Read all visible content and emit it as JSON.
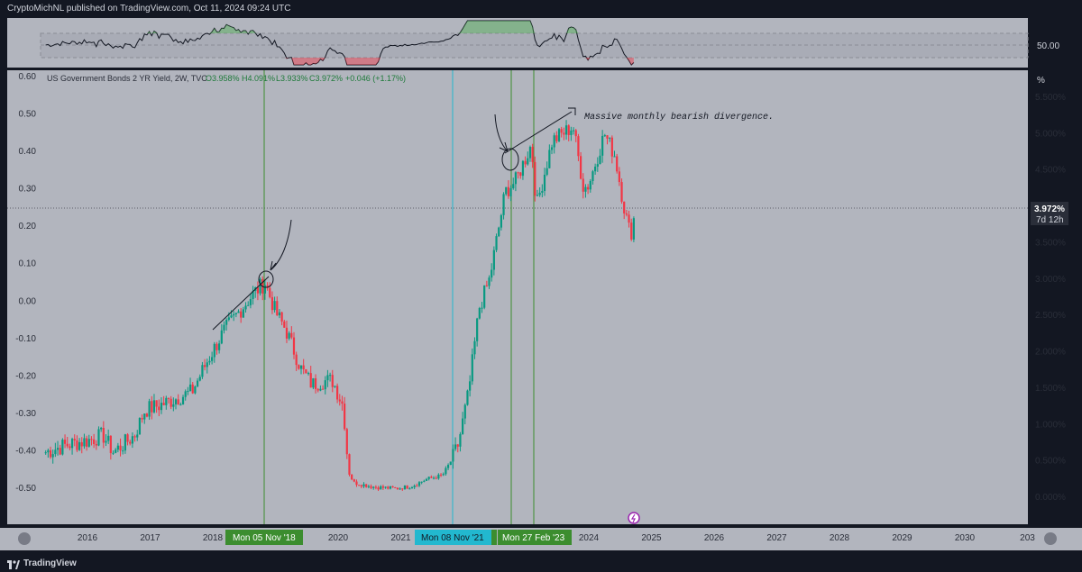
{
  "header": {
    "published": "CryptoMichNL published on TradingView.com, Oct 11, 2024 09:24 UTC"
  },
  "legend": {
    "symbol": "US Government Bonds 2 YR Yield, 2W, TVC",
    "open": "O3.958%",
    "high": "H4.091%",
    "low": "L3.933%",
    "close": "C3.972%",
    "change": "+0.046 (+1.17%)"
  },
  "indicator": {
    "level_label": "50.00"
  },
  "annotation": {
    "text": "Massive monthly bearish divergence."
  },
  "price_tag": {
    "value": "3.972%",
    "countdown": "7d 12h"
  },
  "unit_badge": "%",
  "markers": [
    {
      "label": "Mon 05 Nov '18"
    },
    {
      "label": "Mon 08 Nov '21"
    },
    {
      "label": "Mon 27 Feb '23"
    }
  ],
  "footer": {
    "brand": "TradingView"
  },
  "colors": {
    "background": "#131722",
    "plot_bg": "#b2b5be",
    "up": "#089981",
    "down": "#f23645",
    "green_marker": "#3c8d2f",
    "cyan_marker": "#22b8cf"
  },
  "chart_data": {
    "type": "candlestick",
    "x_ticks": [
      "2016",
      "2017",
      "2018",
      "2019",
      "2020",
      "2021",
      "2022",
      "2023",
      "2024",
      "2025",
      "2026",
      "2027",
      "2028",
      "2029",
      "2030",
      "203"
    ],
    "left_axis_ticks": [
      "0.60",
      "0.50",
      "0.40",
      "0.30",
      "0.20",
      "0.10",
      "0.00",
      "-0.10",
      "-0.20",
      "-0.30",
      "-0.40",
      "-0.50"
    ],
    "right_axis_ticks": [
      "5.500%",
      "5.000%",
      "4.500%",
      "4.000%",
      "3.500%",
      "3.000%",
      "2.500%",
      "2.000%",
      "1.500%",
      "1.000%",
      "0.500%",
      "0.000%"
    ],
    "right_ylim": [
      0.0,
      5.5
    ],
    "close_anchors": [
      [
        "2015-05",
        0.62
      ],
      [
        "2015-09",
        0.72
      ],
      [
        "2016-01",
        0.78
      ],
      [
        "2016-04",
        0.85
      ],
      [
        "2016-06",
        0.62
      ],
      [
        "2016-10",
        0.85
      ],
      [
        "2016-12",
        1.2
      ],
      [
        "2017-03",
        1.27
      ],
      [
        "2017-06",
        1.36
      ],
      [
        "2017-09",
        1.45
      ],
      [
        "2017-12",
        1.88
      ],
      [
        "2018-03",
        2.27
      ],
      [
        "2018-06",
        2.55
      ],
      [
        "2018-09",
        2.82
      ],
      [
        "2018-11",
        2.95
      ],
      [
        "2019-01",
        2.55
      ],
      [
        "2019-03",
        2.3
      ],
      [
        "2019-06",
        1.75
      ],
      [
        "2019-08",
        1.55
      ],
      [
        "2019-10",
        1.6
      ],
      [
        "2019-12",
        1.6
      ],
      [
        "2020-02",
        1.25
      ],
      [
        "2020-03",
        0.35
      ],
      [
        "2020-04",
        0.2
      ],
      [
        "2020-08",
        0.14
      ],
      [
        "2020-12",
        0.12
      ],
      [
        "2021-03",
        0.15
      ],
      [
        "2021-06",
        0.25
      ],
      [
        "2021-09",
        0.3
      ],
      [
        "2021-11",
        0.55
      ],
      [
        "2021-12",
        0.73
      ],
      [
        "2022-02",
        1.45
      ],
      [
        "2022-04",
        2.6
      ],
      [
        "2022-06",
        3.0
      ],
      [
        "2022-09",
        4.2
      ],
      [
        "2022-11",
        4.35
      ],
      [
        "2023-02",
        4.85
      ],
      [
        "2023-03",
        4.0
      ],
      [
        "2023-06",
        4.9
      ],
      [
        "2023-10",
        5.1
      ],
      [
        "2023-12",
        4.25
      ],
      [
        "2024-01",
        4.3
      ],
      [
        "2024-04",
        5.0
      ],
      [
        "2024-06",
        4.7
      ],
      [
        "2024-08",
        3.9
      ],
      [
        "2024-09",
        3.6
      ],
      [
        "2024-10",
        3.972
      ]
    ]
  }
}
